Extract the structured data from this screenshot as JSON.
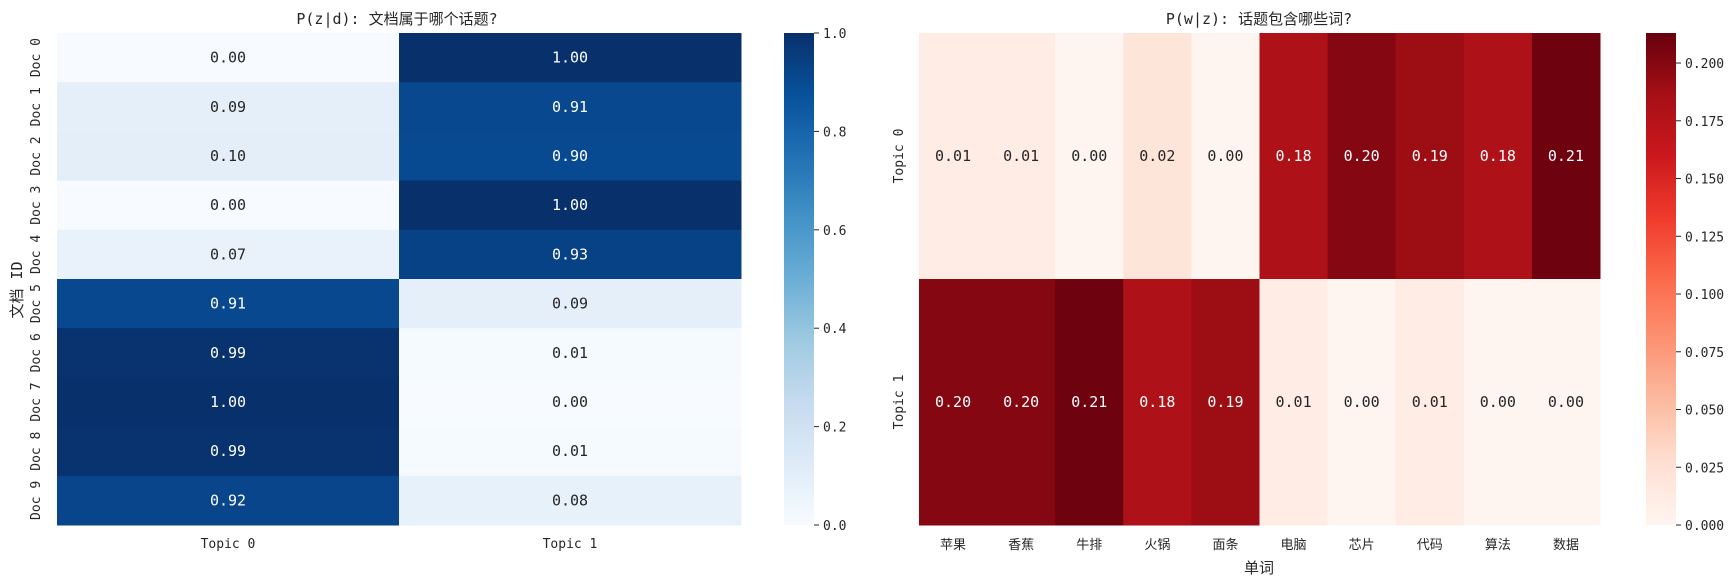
{
  "chart_data": [
    {
      "type": "heatmap",
      "title": "P(z|d): 文档属于哪个话题?",
      "xlabel": "",
      "ylabel": "文档 ID",
      "x_categories": [
        "Topic 0",
        "Topic 1"
      ],
      "y_categories": [
        "Doc 0",
        "Doc 1",
        "Doc 2",
        "Doc 3",
        "Doc 4",
        "Doc 5",
        "Doc 6",
        "Doc 7",
        "Doc 8",
        "Doc 9"
      ],
      "values": [
        [
          0.0,
          1.0
        ],
        [
          0.09,
          0.91
        ],
        [
          0.1,
          0.9
        ],
        [
          0.0,
          1.0
        ],
        [
          0.07,
          0.93
        ],
        [
          0.91,
          0.09
        ],
        [
          0.99,
          0.01
        ],
        [
          1.0,
          0.0
        ],
        [
          0.99,
          0.01
        ],
        [
          0.92,
          0.08
        ]
      ],
      "cell_labels": [
        [
          "0.00",
          "1.00"
        ],
        [
          "0.09",
          "0.91"
        ],
        [
          "0.10",
          "0.90"
        ],
        [
          "0.00",
          "1.00"
        ],
        [
          "0.07",
          "0.93"
        ],
        [
          "0.91",
          "0.09"
        ],
        [
          "0.99",
          "0.01"
        ],
        [
          "1.00",
          "0.00"
        ],
        [
          "0.99",
          "0.01"
        ],
        [
          "0.92",
          "0.08"
        ]
      ],
      "colormap": "Blues",
      "vmin": 0.0,
      "vmax": 1.0,
      "colorbar_ticks": [
        0.0,
        0.2,
        0.4,
        0.6,
        0.8,
        1.0
      ],
      "colorbar_tick_labels": [
        "0.0",
        "0.2",
        "0.4",
        "0.6",
        "0.8",
        "1.0"
      ]
    },
    {
      "type": "heatmap",
      "title": "P(w|z): 话题包含哪些词?",
      "xlabel": "单词",
      "ylabel": "",
      "x_categories": [
        "苹果",
        "香蕉",
        "牛排",
        "火锅",
        "面条",
        "电脑",
        "芯片",
        "代码",
        "算法",
        "数据"
      ],
      "y_categories": [
        "Topic 0",
        "Topic 1"
      ],
      "values": [
        [
          0.01,
          0.01,
          0.0,
          0.02,
          0.0,
          0.18,
          0.2,
          0.19,
          0.18,
          0.21
        ],
        [
          0.2,
          0.2,
          0.21,
          0.18,
          0.19,
          0.01,
          0.0,
          0.01,
          0.0,
          0.0
        ]
      ],
      "cell_labels": [
        [
          "0.01",
          "0.01",
          "0.00",
          "0.02",
          "0.00",
          "0.18",
          "0.20",
          "0.19",
          "0.18",
          "0.21"
        ],
        [
          "0.20",
          "0.20",
          "0.21",
          "0.18",
          "0.19",
          "0.01",
          "0.00",
          "0.01",
          "0.00",
          "0.00"
        ]
      ],
      "colormap": "Reds",
      "vmin": 0.0,
      "vmax": 0.213,
      "colorbar_ticks": [
        0.0,
        0.025,
        0.05,
        0.075,
        0.1,
        0.125,
        0.15,
        0.175,
        0.2
      ],
      "colorbar_tick_labels": [
        "0.000",
        "0.025",
        "0.050",
        "0.075",
        "0.100",
        "0.125",
        "0.150",
        "0.175",
        "0.200"
      ]
    }
  ]
}
